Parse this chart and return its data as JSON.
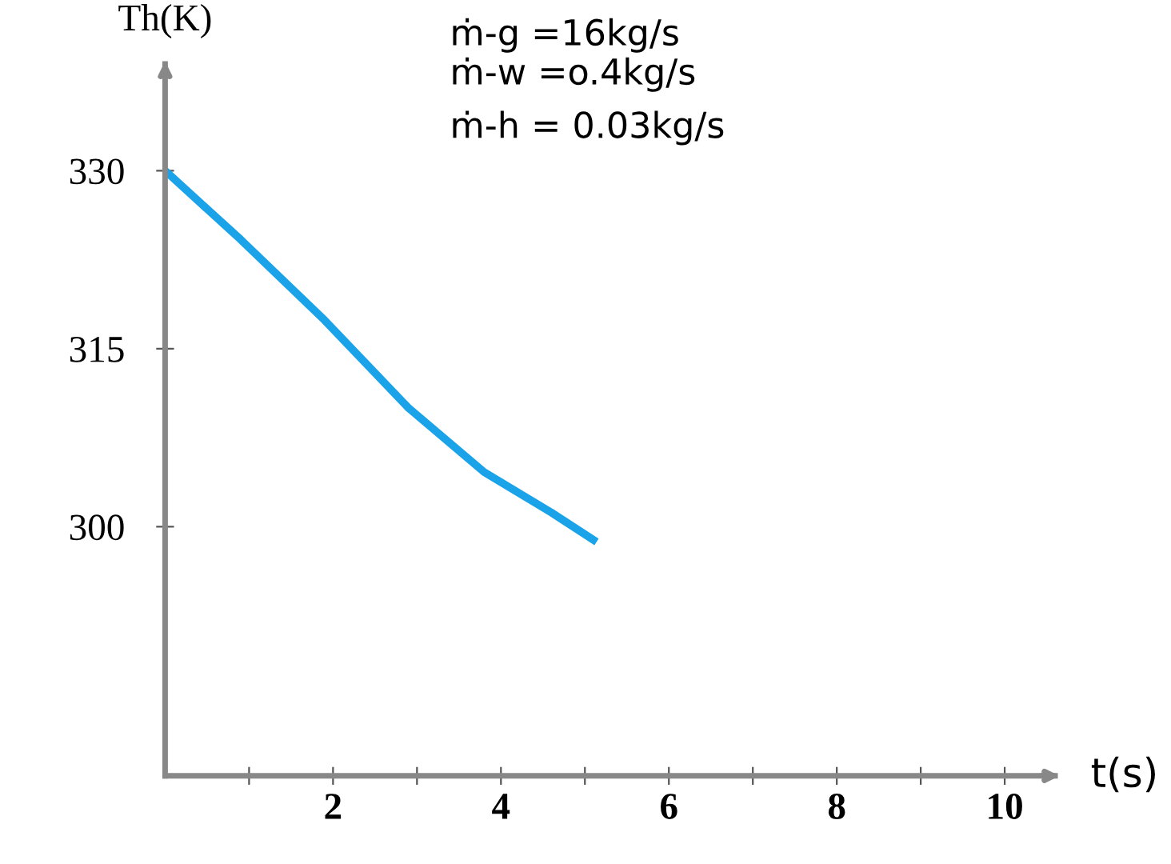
{
  "chart_data": {
    "type": "line",
    "xlabel": "t(s)",
    "ylabel": "Th(K)",
    "annotations": [
      "ṁ-g =16kg/s",
      "ṁ-w =o.4kg/s",
      "ṁ-h = 0.03kg/s"
    ],
    "x": [
      0,
      0.9,
      1.9,
      2.9,
      3.8,
      4.6,
      5.1
    ],
    "series": [
      {
        "color": "#1aa3e8",
        "values": [
          330,
          324.2,
          317.4,
          310.0,
          304.6,
          301.2,
          298.9
        ]
      }
    ],
    "xlim": [
      0,
      10.6
    ],
    "ylim": [
      279,
      339
    ],
    "xticks": [
      {
        "value": 1,
        "label": null
      },
      2,
      {
        "value": 3,
        "label": null
      },
      4,
      {
        "value": 5,
        "label": null
      },
      6,
      {
        "value": 7,
        "label": null
      },
      8,
      {
        "value": 9,
        "label": null
      },
      10
    ],
    "yticks": [
      300,
      315,
      330
    ],
    "grid": false,
    "legend": false,
    "marker": "none",
    "line_style": "solid"
  }
}
